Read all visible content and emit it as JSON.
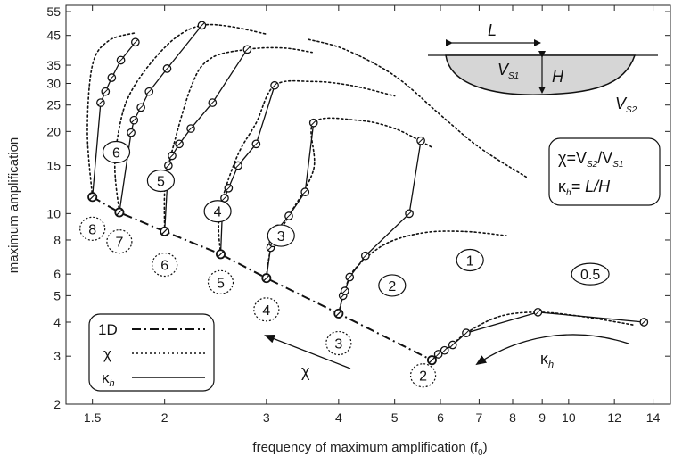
{
  "chart_data": {
    "type": "line",
    "title": "",
    "xlabel": "frequency of maximum amplification (f",
    "xlabel_sub": "0",
    "xlabel_close": ")",
    "ylabel": "maximum amplification",
    "xscale": "log",
    "yscale": "log",
    "xlim": [
      1.35,
      15
    ],
    "ylim": [
      2,
      58
    ],
    "xticks": [
      1.5,
      2,
      3,
      4,
      5,
      6,
      7,
      8,
      9,
      10,
      12,
      14
    ],
    "xtick_labels": [
      "1.5",
      "2",
      "3",
      "4",
      "5",
      "6",
      "7",
      "8",
      "9",
      "10",
      "12",
      "14"
    ],
    "yticks": [
      2,
      3,
      4,
      5,
      6,
      8,
      10,
      15,
      20,
      25,
      30,
      35,
      45,
      55
    ],
    "ytick_labels": [
      "2",
      "3",
      "4",
      "5",
      "6",
      "8",
      "10",
      "15",
      "20",
      "25",
      "30",
      "35",
      "45",
      "55"
    ],
    "grid": false,
    "legend": {
      "position": "bottom-left",
      "entries": [
        {
          "label": "1D",
          "style": "dash-dot"
        },
        {
          "label": "χ",
          "style": "dotted"
        },
        {
          "label": "κ",
          "sub": "h",
          "style": "solid"
        }
      ]
    },
    "series_1d": {
      "style": "dash-dot",
      "points": [
        [
          1.5,
          11.5
        ],
        [
          1.67,
          10.1
        ],
        [
          2.0,
          8.6
        ],
        [
          2.5,
          7.1
        ],
        [
          3.0,
          5.8
        ],
        [
          4.0,
          4.3
        ],
        [
          5.8,
          2.9
        ]
      ]
    },
    "kappa_curves": [
      {
        "label": "6",
        "points": [
          [
            1.5,
            11.5
          ],
          [
            1.55,
            25.5
          ],
          [
            1.58,
            28.0
          ],
          [
            1.62,
            31.5
          ],
          [
            1.68,
            36.5
          ],
          [
            1.78,
            42.5
          ]
        ]
      },
      {
        "label": "5",
        "points": [
          [
            1.67,
            10.1
          ],
          [
            1.75,
            19.8
          ],
          [
            1.77,
            22.0
          ],
          [
            1.82,
            24.5
          ],
          [
            1.88,
            28.0
          ],
          [
            2.02,
            34.0
          ],
          [
            2.32,
            49.0
          ]
        ]
      },
      {
        "label": "4",
        "points": [
          [
            2.0,
            8.6
          ],
          [
            2.03,
            15.0
          ],
          [
            2.06,
            16.3
          ],
          [
            2.12,
            18.0
          ],
          [
            2.22,
            20.5
          ],
          [
            2.42,
            25.5
          ],
          [
            2.78,
            40.0
          ]
        ]
      },
      {
        "label": "3",
        "points": [
          [
            2.5,
            7.1
          ],
          [
            2.52,
            10.8
          ],
          [
            2.54,
            11.4
          ],
          [
            2.58,
            12.4
          ],
          [
            2.68,
            15.0
          ],
          [
            2.88,
            18.0
          ],
          [
            3.1,
            29.5
          ]
        ]
      },
      {
        "label": "2",
        "points": [
          [
            3.0,
            5.8
          ],
          [
            3.05,
            7.5
          ],
          [
            3.08,
            7.8
          ],
          [
            3.14,
            8.8
          ],
          [
            3.28,
            9.8
          ],
          [
            3.5,
            12.0
          ],
          [
            3.62,
            21.5
          ]
        ]
      },
      {
        "label": "1",
        "points": [
          [
            4.0,
            4.3
          ],
          [
            4.07,
            5.0
          ],
          [
            4.1,
            5.2
          ],
          [
            4.18,
            5.85
          ],
          [
            4.45,
            7.0
          ],
          [
            5.3,
            10.0
          ],
          [
            5.55,
            18.5
          ]
        ]
      },
      {
        "label": "0.5",
        "points": [
          [
            5.8,
            2.9
          ],
          [
            5.95,
            3.05
          ],
          [
            6.1,
            3.15
          ],
          [
            6.3,
            3.3
          ],
          [
            6.65,
            3.65
          ],
          [
            8.85,
            4.35
          ],
          [
            13.5,
            4.0
          ]
        ]
      }
    ],
    "chi_curves": [
      {
        "label": "8",
        "points": [
          [
            1.5,
            11.5
          ],
          [
            1.47,
            20.0
          ],
          [
            1.5,
            35.0
          ],
          [
            1.6,
            43.0
          ],
          [
            1.78,
            46.0
          ]
        ]
      },
      {
        "label": "7",
        "points": [
          [
            1.67,
            10.1
          ],
          [
            1.64,
            15.0
          ],
          [
            1.68,
            22.0
          ],
          [
            1.75,
            28.0
          ],
          [
            1.9,
            36.0
          ],
          [
            2.1,
            44.5
          ],
          [
            2.32,
            49.0
          ],
          [
            2.6,
            48.5
          ],
          [
            3.0,
            45.5
          ]
        ]
      },
      {
        "label": "6",
        "points": [
          [
            2.0,
            8.6
          ],
          [
            2.0,
            12.0
          ],
          [
            2.03,
            15.0
          ],
          [
            2.22,
            29.0
          ],
          [
            2.4,
            37.0
          ],
          [
            2.78,
            40.0
          ],
          [
            3.2,
            40.5
          ],
          [
            3.6,
            39.0
          ]
        ]
      },
      {
        "label": "5",
        "points": [
          [
            2.5,
            7.1
          ],
          [
            2.48,
            9.0
          ],
          [
            2.52,
            11.4
          ],
          [
            2.68,
            16.5
          ],
          [
            2.88,
            21.5
          ],
          [
            3.1,
            29.5
          ],
          [
            3.6,
            30.5
          ],
          [
            4.2,
            29.5
          ],
          [
            5.0,
            27.0
          ]
        ]
      },
      {
        "label": "4",
        "points": [
          [
            3.0,
            5.8
          ],
          [
            3.02,
            6.6
          ],
          [
            3.08,
            7.8
          ],
          [
            3.28,
            9.8
          ],
          [
            3.62,
            14.5
          ],
          [
            3.62,
            21.5
          ],
          [
            4.3,
            22.0
          ],
          [
            5.0,
            20.5
          ],
          [
            5.8,
            17.5
          ]
        ]
      },
      {
        "label": "3",
        "points": [
          [
            4.0,
            4.3
          ],
          [
            4.05,
            4.8
          ],
          [
            4.1,
            5.2
          ],
          [
            4.25,
            6.2
          ],
          [
            4.8,
            7.7
          ],
          [
            5.6,
            8.5
          ],
          [
            6.6,
            8.6
          ],
          [
            7.8,
            8.3
          ]
        ]
      },
      {
        "label": "2",
        "points": [
          [
            5.8,
            2.9
          ],
          [
            6.2,
            3.2
          ],
          [
            6.65,
            3.65
          ],
          [
            7.6,
            4.2
          ],
          [
            8.85,
            4.35
          ],
          [
            10.5,
            4.2
          ],
          [
            13.0,
            3.9
          ]
        ]
      },
      {
        "label": "",
        "points": [
          [
            3.55,
            43.5
          ],
          [
            4.1,
            40.0
          ],
          [
            5.0,
            32.0
          ],
          [
            6.0,
            23.0
          ],
          [
            7.0,
            17.5
          ],
          [
            8.5,
            13.5
          ]
        ]
      }
    ],
    "curve_labels": {
      "kappa": [
        {
          "text": "6",
          "at": [
            1.65,
            16.8
          ]
        },
        {
          "text": "5",
          "at": [
            1.97,
            13.2
          ]
        },
        {
          "text": "4",
          "at": [
            2.47,
            10.2
          ]
        },
        {
          "text": "3",
          "at": [
            3.18,
            8.3
          ]
        },
        {
          "text": "2",
          "at": [
            4.95,
            5.45
          ]
        },
        {
          "text": "1",
          "at": [
            6.75,
            6.75
          ]
        },
        {
          "text": "0.5",
          "at": [
            10.9,
            6.0
          ]
        }
      ],
      "chi": [
        {
          "text": "8",
          "at": [
            1.5,
            8.8
          ]
        },
        {
          "text": "7",
          "at": [
            1.67,
            7.9
          ]
        },
        {
          "text": "6",
          "at": [
            2.0,
            6.5
          ]
        },
        {
          "text": "5",
          "at": [
            2.5,
            5.6
          ]
        },
        {
          "text": "4",
          "at": [
            3.0,
            4.45
          ]
        },
        {
          "text": "3",
          "at": [
            4.0,
            3.35
          ]
        },
        {
          "text": "2",
          "at": [
            5.6,
            2.55
          ]
        }
      ]
    },
    "inset": {
      "L_label": "L",
      "H_label": "H",
      "vs1_label": "V",
      "vs1_sub": "S1",
      "vs2_label": "V",
      "vs2_sub": "S2"
    },
    "formula_box": {
      "line1_chi": "χ=V",
      "line1_sub1": "S2",
      "line1_mid": "/V",
      "line1_sub2": "S1",
      "line2_kappa": "κ",
      "line2_sub": "h",
      "line2_rest": "= L/H"
    },
    "annotations": {
      "chi_arrow_label": "χ",
      "kappa_arrow_label": "κ",
      "kappa_arrow_sub": "h"
    }
  }
}
